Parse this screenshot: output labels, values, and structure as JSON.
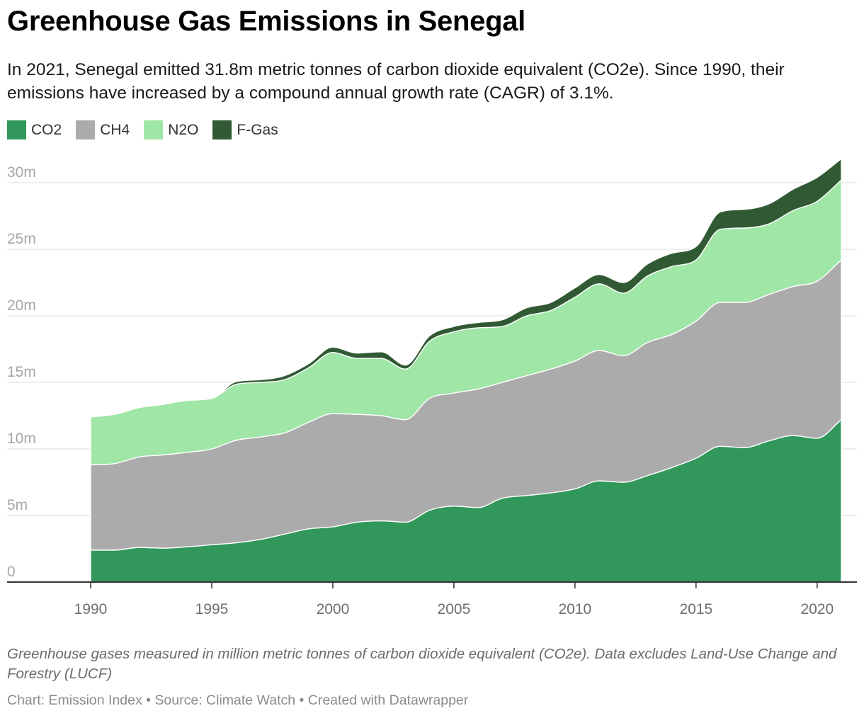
{
  "title": "Greenhouse Gas Emissions in Senegal",
  "subtitle": "In 2021, Senegal emitted 31.8m metric tonnes of carbon dioxide equivalent (CO2e). Since 1990, their emissions have increased by a compound annual growth rate (CAGR) of 3.1%.",
  "notes": "Greenhouse gases measured in million metric tonnes of carbon dioxide equivalent (CO2e). Data excludes Land-Use Change and Forestry (LUCF)",
  "credits": "Chart: Emission Index • Source: Climate Watch • Created with Datawrapper",
  "chart_data": {
    "type": "area",
    "stacked": true,
    "x": [
      1990,
      1991,
      1992,
      1993,
      1994,
      1995,
      1996,
      1997,
      1998,
      1999,
      2000,
      2001,
      2002,
      2003,
      2004,
      2005,
      2006,
      2007,
      2008,
      2009,
      2010,
      2011,
      2012,
      2013,
      2014,
      2015,
      2016,
      2017,
      2018,
      2019,
      2020,
      2021
    ],
    "series": [
      {
        "name": "CO2",
        "color": "#31975a",
        "values": [
          2.4,
          2.4,
          2.6,
          2.55,
          2.65,
          2.8,
          2.95,
          3.2,
          3.6,
          4.0,
          4.15,
          4.5,
          4.6,
          4.5,
          5.4,
          5.7,
          5.6,
          6.3,
          6.5,
          6.7,
          7.0,
          7.6,
          7.5,
          8.0,
          8.6,
          9.3,
          10.2,
          10.1,
          10.6,
          11.0,
          10.8,
          12.2
        ]
      },
      {
        "name": "CH4",
        "color": "#ababab",
        "values": [
          6.4,
          6.5,
          6.8,
          7.0,
          7.1,
          7.2,
          7.7,
          7.7,
          7.6,
          8.0,
          8.5,
          8.1,
          7.9,
          7.7,
          8.4,
          8.5,
          8.9,
          8.7,
          9.0,
          9.3,
          9.6,
          9.8,
          9.5,
          10.0,
          10.0,
          10.3,
          10.8,
          10.9,
          11.0,
          11.2,
          11.8,
          12.0
        ]
      },
      {
        "name": "N2O",
        "color": "#a0e6a6",
        "values": [
          3.6,
          3.7,
          3.7,
          3.8,
          3.9,
          3.8,
          4.2,
          4.1,
          4.0,
          4.1,
          4.6,
          4.2,
          4.3,
          3.8,
          4.3,
          4.6,
          4.6,
          4.2,
          4.5,
          4.4,
          4.8,
          5.0,
          4.7,
          5.0,
          5.1,
          4.6,
          5.5,
          5.6,
          5.3,
          5.7,
          6.0,
          6.0
        ]
      },
      {
        "name": "F-Gas",
        "color": "#315a34",
        "values": [
          0.0,
          0.0,
          0.0,
          0.0,
          0.0,
          0.0,
          0.2,
          0.2,
          0.3,
          0.3,
          0.4,
          0.4,
          0.5,
          0.3,
          0.4,
          0.4,
          0.4,
          0.5,
          0.6,
          0.6,
          0.7,
          0.7,
          0.8,
          0.9,
          1.0,
          1.0,
          1.3,
          1.4,
          1.5,
          1.6,
          1.8,
          1.6
        ]
      }
    ],
    "xlim": [
      1986.6,
      2021
    ],
    "ylim": [
      0,
      30
    ],
    "y_ticks": [
      0,
      5,
      10,
      15,
      20,
      25,
      30
    ],
    "y_tick_labels": [
      "0",
      "5m",
      "10m",
      "15m",
      "20m",
      "25m",
      "30m"
    ],
    "x_ticks": [
      1990,
      1995,
      2000,
      2005,
      2010,
      2015,
      2020
    ],
    "x_tick_labels": [
      "1990",
      "1995",
      "2000",
      "2005",
      "2010",
      "2015",
      "2020"
    ],
    "grid": true,
    "legend_position": "top-left"
  }
}
